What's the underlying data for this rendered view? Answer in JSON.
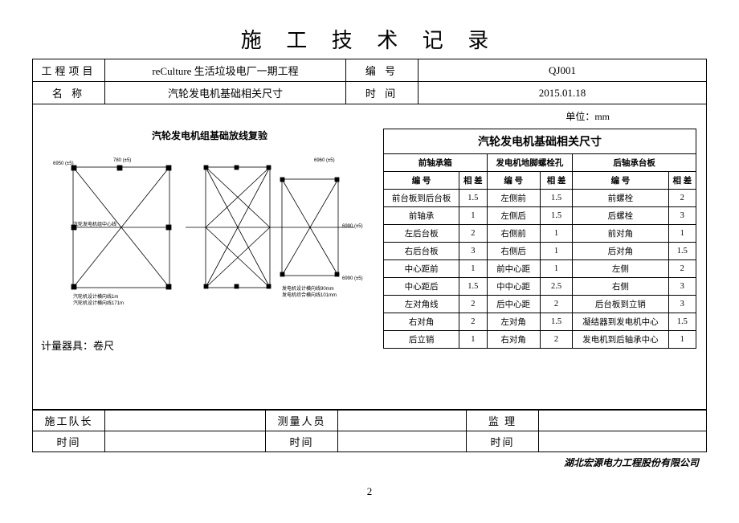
{
  "page": {
    "title": "施 工 技 术 记 录",
    "company": "湖北宏源电力工程股份有限公司",
    "page_number": "2"
  },
  "header": {
    "project_label": "工程项目",
    "project_value": "reCulture 生活垃圾电厂一期工程",
    "code_label": "编  号",
    "code_value": "QJ001",
    "name_label": "名  称",
    "name_value": "汽轮发电机基础相关尺寸",
    "time_label": "时  间",
    "time_value": "2015.01.18"
  },
  "content": {
    "unit_label": "单位：mm",
    "diagram_title": "汽轮发电机组基础放线复验",
    "instrument_label": "计量器具：卷尺",
    "diagram_annotations": {
      "a1": "6950 (±5)",
      "a2": "780 (±5)",
      "a3": "6960 (±5)",
      "a4": "6990 (±5)",
      "a5": "6990 (±5)",
      "a6": "汽轮发电机组中心线",
      "a7": "汽轮机设计横向线1m",
      "a8": "汽轮机设计横向线171m",
      "a9": "发电机设计横向线90mm",
      "a10": "发电机综合横向线101mm"
    }
  },
  "data_table": {
    "title": "汽轮发电机基础相关尺寸",
    "group_headers": [
      "前轴承箱",
      "发电机地脚螺栓孔",
      "后轴承台板"
    ],
    "col_headers": [
      "编  号",
      "相 差",
      "编  号",
      "相  差",
      "编  号",
      "相 差"
    ],
    "rows": [
      [
        "前台板到后台板",
        "1.5",
        "左侧前",
        "1.5",
        "前螺栓",
        "2"
      ],
      [
        "前轴承",
        "1",
        "左侧后",
        "1.5",
        "后螺栓",
        "3"
      ],
      [
        "左后台板",
        "2",
        "右侧前",
        "1",
        "前对角",
        "1"
      ],
      [
        "右后台板",
        "3",
        "右侧后",
        "1",
        "后对角",
        "1.5"
      ],
      [
        "中心距前",
        "1",
        "前中心距",
        "1",
        "左侧",
        "2"
      ],
      [
        "中心距后",
        "1.5",
        "中中心距",
        "2.5",
        "右侧",
        "3"
      ],
      [
        "左对角线",
        "2",
        "后中心距",
        "2",
        "后台板到立销",
        "3"
      ],
      [
        "右对角",
        "2",
        "左对角",
        "1.5",
        "凝结器到发电机中心",
        "1.5"
      ],
      [
        "后立销",
        "1",
        "右对角",
        "2",
        "发电机到后轴承中心",
        "1"
      ]
    ]
  },
  "signatures": {
    "leader_label": "施工队长",
    "survey_label": "测量人员",
    "supervise_label": "监  理",
    "time_label": "时间"
  },
  "styling": {
    "border_color": "#000000",
    "bg_color": "#ffffff",
    "title_fontsize": 26,
    "body_fontsize": 12,
    "table_fontsize": 10.5
  }
}
